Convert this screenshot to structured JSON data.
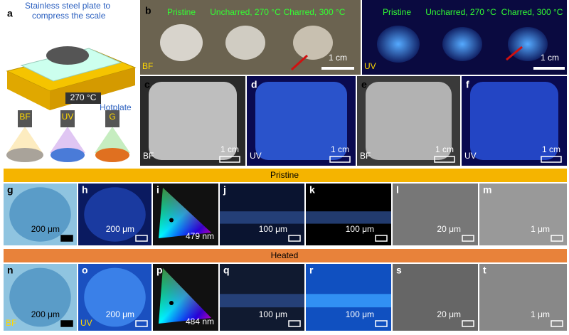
{
  "panels": {
    "a": {
      "label": "a",
      "note": [
        "Stainless steel plate to",
        "compress the scale"
      ],
      "temperature": "270 °C",
      "hotplate": "Hotplate",
      "lamps": [
        "BF",
        "UV",
        "G"
      ]
    },
    "b": {
      "label": "b",
      "samples": [
        "Pristine",
        "Uncharred, 270 °C",
        "Charred, 300 °C"
      ],
      "scale": "1 cm",
      "mode": "BF"
    },
    "b_uv": {
      "samples": [
        "Pristine",
        "Uncharred, 270 °C",
        "Charred, 300 °C"
      ],
      "scale": "1 cm",
      "mode": "UV"
    },
    "c": {
      "label": "c",
      "scale": "1 cm",
      "mode": "BF"
    },
    "d": {
      "label": "d",
      "scale": "1 cm",
      "mode": "UV"
    },
    "e": {
      "label": "e",
      "scale": "1 cm",
      "mode": "BF"
    },
    "f": {
      "label": "f",
      "scale": "1 cm",
      "mode": "UV"
    }
  },
  "rows": [
    {
      "title": "Pristine",
      "panels": [
        {
          "label": "g",
          "scale": "200 μm"
        },
        {
          "label": "h",
          "scale": "200 μm"
        },
        {
          "label": "i",
          "wavelength": "479 nm"
        },
        {
          "label": "j",
          "scale": "100 μm"
        },
        {
          "label": "k",
          "scale": "100 μm"
        },
        {
          "label": "l",
          "scale": "20 μm"
        },
        {
          "label": "m",
          "scale": "1 μm"
        }
      ]
    },
    {
      "title": "Heated",
      "panels": [
        {
          "label": "n",
          "scale": "200 μm",
          "mode": "BF"
        },
        {
          "label": "o",
          "scale": "200 μm",
          "mode": "UV"
        },
        {
          "label": "p",
          "wavelength": "484 nm"
        },
        {
          "label": "q",
          "scale": "100 μm"
        },
        {
          "label": "r",
          "scale": "100 μm"
        },
        {
          "label": "s",
          "scale": "20 μm"
        },
        {
          "label": "t",
          "scale": "1 μm"
        }
      ]
    }
  ]
}
